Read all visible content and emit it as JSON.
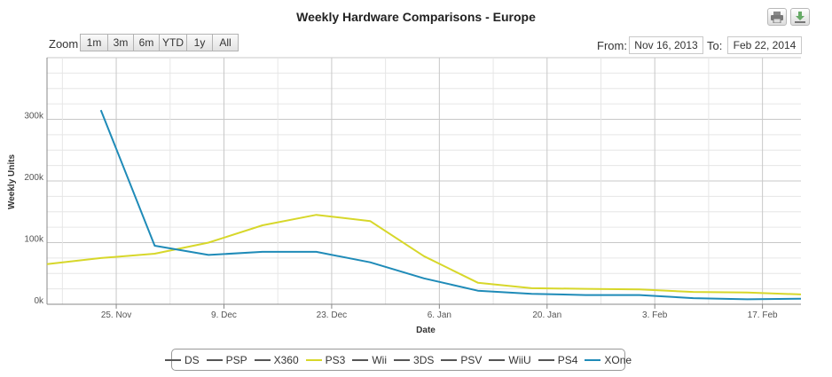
{
  "chart_data": {
    "type": "line",
    "title": "Weekly Hardware Comparisons - Europe",
    "xlabel": "Date",
    "ylabel": "Weekly Units",
    "x_ticks": [
      "25. Nov",
      "9. Dec",
      "23. Dec",
      "6. Jan",
      "20. Jan",
      "3. Feb",
      "17. Feb"
    ],
    "y_ticks": [
      "0k",
      "100k",
      "200k",
      "300k"
    ],
    "ylim": [
      0,
      400000
    ],
    "x_range_days": [
      0,
      98
    ],
    "x_tick_days": [
      9,
      23,
      37,
      51,
      65,
      79,
      93
    ],
    "grid": true,
    "series": [
      {
        "name": "DS",
        "color": "#555555",
        "visible": false,
        "x": [],
        "y": []
      },
      {
        "name": "PSP",
        "color": "#555555",
        "visible": false,
        "x": [],
        "y": []
      },
      {
        "name": "X360",
        "color": "#555555",
        "visible": false,
        "x": [],
        "y": []
      },
      {
        "name": "PS3",
        "color": "#d7d72a",
        "visible": true,
        "x": [
          0,
          7,
          14,
          21,
          28,
          35,
          42,
          49,
          56,
          63,
          70,
          77,
          84,
          91,
          98
        ],
        "y": [
          65000,
          75000,
          82000,
          100000,
          128000,
          145000,
          135000,
          78000,
          35000,
          26000,
          25000,
          24000,
          20000,
          19000,
          16000
        ]
      },
      {
        "name": "Wii",
        "color": "#555555",
        "visible": false,
        "x": [],
        "y": []
      },
      {
        "name": "3DS",
        "color": "#555555",
        "visible": false,
        "x": [],
        "y": []
      },
      {
        "name": "PSV",
        "color": "#555555",
        "visible": false,
        "x": [],
        "y": []
      },
      {
        "name": "WiiU",
        "color": "#555555",
        "visible": false,
        "x": [],
        "y": []
      },
      {
        "name": "PS4",
        "color": "#555555",
        "visible": false,
        "x": [],
        "y": []
      },
      {
        "name": "XOne",
        "color": "#1f8bb8",
        "visible": true,
        "x": [
          7,
          14,
          21,
          28,
          35,
          42,
          49,
          56,
          63,
          70,
          77,
          84,
          91,
          98
        ],
        "y": [
          315000,
          95000,
          80000,
          85000,
          85000,
          68000,
          42000,
          22000,
          17000,
          15000,
          15000,
          10000,
          8000,
          9000
        ]
      }
    ]
  },
  "toolbar": {
    "zoom_label": "Zoom",
    "zoom_buttons": [
      "1m",
      "3m",
      "6m",
      "YTD",
      "1y",
      "All"
    ],
    "from_label": "From:",
    "from_date": "Nov 16, 2013",
    "to_label": "To:",
    "to_date": "Feb 22, 2014"
  },
  "icons": {
    "print": "print-icon",
    "export": "export-icon"
  }
}
